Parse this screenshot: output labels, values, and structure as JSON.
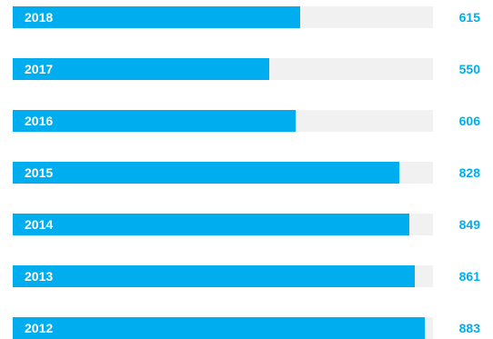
{
  "chart_data": {
    "type": "bar",
    "orientation": "horizontal",
    "categories": [
      "2018",
      "2017",
      "2016",
      "2015",
      "2014",
      "2013",
      "2012"
    ],
    "values": [
      615,
      550,
      606,
      828,
      849,
      861,
      883
    ],
    "value_labels": [
      "615",
      "550",
      "606",
      "828",
      "849",
      "861",
      "883"
    ],
    "xlim": [
      0,
      900
    ],
    "grid": false,
    "legend": "none",
    "colors": {
      "bar": "#00aeef",
      "track": "#f1f1f2",
      "category_text": "#ffffff",
      "value_text": "#00aeef"
    }
  }
}
